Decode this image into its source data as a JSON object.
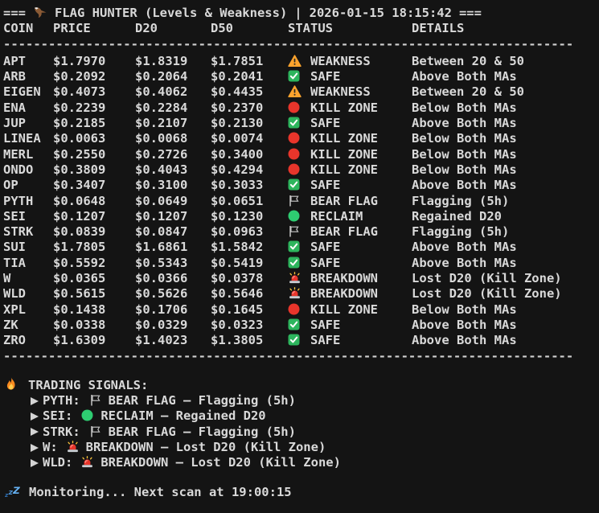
{
  "header": {
    "prefix": "===",
    "icon": "eagle-icon",
    "title": "FLAG HUNTER (Levels & Weakness)",
    "pipe": "|",
    "timestamp": "2026-01-15 18:15:42",
    "suffix": "==="
  },
  "table": {
    "columns": [
      "COIN",
      "PRICE",
      "D20",
      "D50",
      "STATUS",
      "DETAILS"
    ],
    "separator": "----------------------------------------------------------------------------",
    "rows": [
      {
        "coin": "APT",
        "price": "$1.7970",
        "d20": "$1.8319",
        "d50": "$1.7851",
        "status_icon": "warning-icon",
        "status": "WEAKNESS",
        "details": "Between 20 & 50"
      },
      {
        "coin": "ARB",
        "price": "$0.2092",
        "d20": "$0.2064",
        "d50": "$0.2041",
        "status_icon": "check-icon",
        "status": "SAFE",
        "details": "Above Both MAs"
      },
      {
        "coin": "EIGEN",
        "price": "$0.4073",
        "d20": "$0.4062",
        "d50": "$0.4435",
        "status_icon": "warning-icon",
        "status": "WEAKNESS",
        "details": "Between 20 & 50"
      },
      {
        "coin": "ENA",
        "price": "$0.2239",
        "d20": "$0.2284",
        "d50": "$0.2370",
        "status_icon": "kill-zone-icon",
        "status": "KILL ZONE",
        "details": "Below Both MAs"
      },
      {
        "coin": "JUP",
        "price": "$0.2185",
        "d20": "$0.2107",
        "d50": "$0.2130",
        "status_icon": "check-icon",
        "status": "SAFE",
        "details": "Above Both MAs"
      },
      {
        "coin": "LINEA",
        "price": "$0.0063",
        "d20": "$0.0068",
        "d50": "$0.0074",
        "status_icon": "kill-zone-icon",
        "status": "KILL ZONE",
        "details": "Below Both MAs"
      },
      {
        "coin": "MERL",
        "price": "$0.2550",
        "d20": "$0.2726",
        "d50": "$0.3400",
        "status_icon": "kill-zone-icon",
        "status": "KILL ZONE",
        "details": "Below Both MAs"
      },
      {
        "coin": "ONDO",
        "price": "$0.3809",
        "d20": "$0.4043",
        "d50": "$0.4294",
        "status_icon": "kill-zone-icon",
        "status": "KILL ZONE",
        "details": "Below Both MAs"
      },
      {
        "coin": "OP",
        "price": "$0.3407",
        "d20": "$0.3100",
        "d50": "$0.3033",
        "status_icon": "check-icon",
        "status": "SAFE",
        "details": "Above Both MAs"
      },
      {
        "coin": "PYTH",
        "price": "$0.0648",
        "d20": "$0.0649",
        "d50": "$0.0651",
        "status_icon": "bear-flag-icon",
        "status": "BEAR FLAG",
        "details": "Flagging (5h)"
      },
      {
        "coin": "SEI",
        "price": "$0.1207",
        "d20": "$0.1207",
        "d50": "$0.1230",
        "status_icon": "reclaim-icon",
        "status": "RECLAIM",
        "details": "Regained D20"
      },
      {
        "coin": "STRK",
        "price": "$0.0839",
        "d20": "$0.0847",
        "d50": "$0.0963",
        "status_icon": "bear-flag-icon",
        "status": "BEAR FLAG",
        "details": "Flagging (5h)"
      },
      {
        "coin": "SUI",
        "price": "$1.7805",
        "d20": "$1.6861",
        "d50": "$1.5842",
        "status_icon": "check-icon",
        "status": "SAFE",
        "details": "Above Both MAs"
      },
      {
        "coin": "TIA",
        "price": "$0.5592",
        "d20": "$0.5343",
        "d50": "$0.5419",
        "status_icon": "check-icon",
        "status": "SAFE",
        "details": "Above Both MAs"
      },
      {
        "coin": "W",
        "price": "$0.0365",
        "d20": "$0.0366",
        "d50": "$0.0378",
        "status_icon": "breakdown-icon",
        "status": "BREAKDOWN",
        "details": "Lost D20 (Kill Zone)"
      },
      {
        "coin": "WLD",
        "price": "$0.5615",
        "d20": "$0.5626",
        "d50": "$0.5646",
        "status_icon": "breakdown-icon",
        "status": "BREAKDOWN",
        "details": "Lost D20 (Kill Zone)"
      },
      {
        "coin": "XPL",
        "price": "$0.1438",
        "d20": "$0.1706",
        "d50": "$0.1645",
        "status_icon": "kill-zone-icon",
        "status": "KILL ZONE",
        "details": "Below Both MAs"
      },
      {
        "coin": "ZK",
        "price": "$0.0338",
        "d20": "$0.0329",
        "d50": "$0.0323",
        "status_icon": "check-icon",
        "status": "SAFE",
        "details": "Above Both MAs"
      },
      {
        "coin": "ZRO",
        "price": "$1.6309",
        "d20": "$1.4023",
        "d50": "$1.3805",
        "status_icon": "check-icon",
        "status": "SAFE",
        "details": "Above Both MAs"
      }
    ]
  },
  "signals": {
    "icon": "fire-icon",
    "heading": "TRADING SIGNALS:",
    "items": [
      {
        "coin_label": "PYTH:",
        "icon": "bear-flag-icon",
        "text": "BEAR FLAG – Flagging (5h)"
      },
      {
        "coin_label": "SEI:",
        "icon": "reclaim-icon",
        "text": "RECLAIM – Regained D20"
      },
      {
        "coin_label": "STRK:",
        "icon": "bear-flag-icon",
        "text": "BEAR FLAG – Flagging (5h)"
      },
      {
        "coin_label": "W:",
        "icon": "breakdown-icon",
        "text": "BREAKDOWN – Lost D20 (Kill Zone)"
      },
      {
        "coin_label": "WLD:",
        "icon": "breakdown-icon",
        "text": "BREAKDOWN – Lost D20 (Kill Zone)"
      }
    ]
  },
  "footer": {
    "icon": "zzz-icon",
    "text": "Monitoring... Next scan at 19:00:15"
  },
  "colors": {
    "background": "#141414",
    "text": "#d9d9d9",
    "warning_orange": "#FCA32D",
    "exclamation_dark": "#262626",
    "safe_green": "#2DB55D",
    "kill_red": "#E8352B",
    "reclaim_green": "#2ECC71",
    "flag_outline": "#c8c8c8",
    "flag_fill": "#141414",
    "siren_red": "#E8352B",
    "siren_base": "#c9cdd2",
    "spark_yellow": "#FFC53D",
    "fire_orange": "#F98A1F",
    "fire_yellow": "#FFCC4D",
    "zzz_blue_light": "#66b1f2",
    "zzz_blue_mid": "#4a8fd1",
    "zzz_blue_dark": "#2f6fb3",
    "eagle_brown": "#8a5a35",
    "eagle_head": "#ededed",
    "arrow_gray": "#d4d4d4"
  }
}
